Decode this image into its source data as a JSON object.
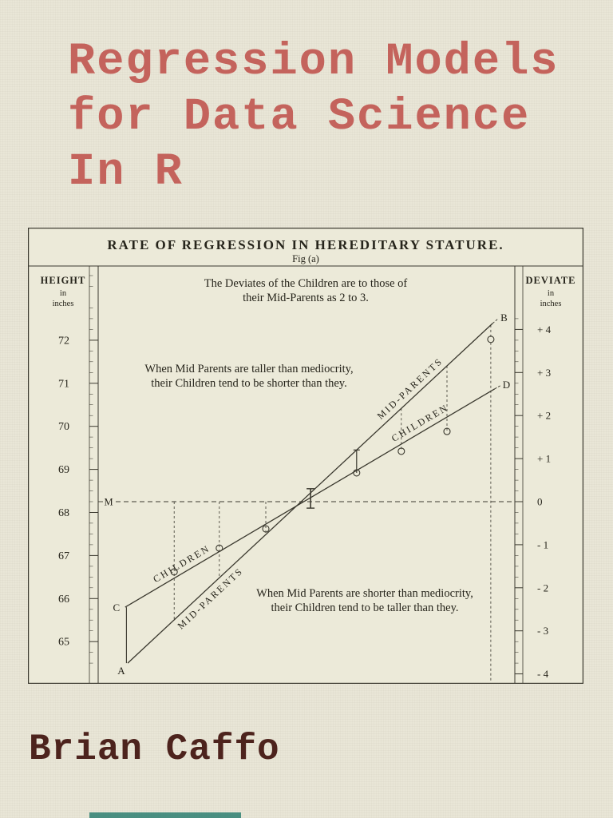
{
  "cover": {
    "background": "#e9e6d7",
    "figure_bg": "#ecead9",
    "ink_color": "#3a382e",
    "title_lines": [
      "Regression Models",
      "for Data Science",
      "In R"
    ],
    "title_color": "#c4635c",
    "author": "Brian Caffo",
    "author_color": "#4d231d",
    "bottom_strip_color": "#2e7f72"
  },
  "chart_data": {
    "type": "line",
    "title": "RATE OF REGRESSION IN HEREDITARY STATURE.",
    "subtitle": "Fig (a)",
    "left_axis": {
      "label": "HEIGHT",
      "unit": [
        "in",
        "inches"
      ],
      "ticks": [
        72,
        71,
        70,
        69,
        68,
        67,
        66,
        65
      ]
    },
    "right_axis": {
      "label": "DEVIATE",
      "unit": [
        "in",
        "inches"
      ],
      "ticks": [
        "+ 4",
        "+ 3",
        "+ 2",
        "+ 1",
        "0",
        "- 1",
        "- 2",
        "- 3",
        "- 4"
      ]
    },
    "height_at_zero_deviate": 68.25,
    "grid": false,
    "note_top": [
      "The Deviates of the Children are to those of",
      "their Mid-Parents as 2 to 3."
    ],
    "note_upper_left": [
      "When Mid Parents are taller than mediocrity,",
      "their Children tend to be shorter than they."
    ],
    "note_lower_right": [
      "When Mid Parents are shorter than mediocrity,",
      "their Children tend to be taller than they."
    ],
    "zero_marker_label": "M",
    "series": [
      {
        "name": "MID-PARENTS",
        "ratio_part": 3,
        "start": {
          "x": -3.97,
          "deviate": -3.75,
          "label": "A"
        },
        "end": {
          "x": 4.51,
          "deviate": 4.14,
          "label": "B"
        }
      },
      {
        "name": "CHILDREN",
        "ratio_part": 2,
        "start": {
          "x": -4.03,
          "deviate": -2.45,
          "label": "C"
        },
        "end": {
          "x": 4.56,
          "deviate": 2.62,
          "label": "D"
        }
      }
    ],
    "points": [
      {
        "x": -2.89,
        "deviate": -1.63
      },
      {
        "x": -1.84,
        "deviate": -1.08
      },
      {
        "x": -0.76,
        "deviate": -0.63
      },
      {
        "x": 1.35,
        "deviate": 0.67
      },
      {
        "x": 2.39,
        "deviate": 1.17
      },
      {
        "x": 3.45,
        "deviate": 1.63
      },
      {
        "x": 4.47,
        "deviate": 3.77
      }
    ]
  }
}
